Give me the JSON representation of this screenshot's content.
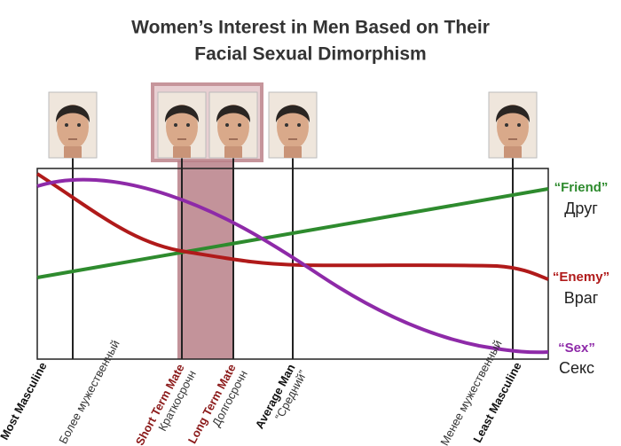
{
  "header": {
    "title": [
      "Women’s Interest in Men Based on Their",
      "Facial Sexual Dimorphism"
    ]
  },
  "legend": {
    "friend": [
      "“Friend”",
      "Друг"
    ],
    "enemy": [
      "“Enemy”",
      "Враг"
    ],
    "sex": [
      "“Sex”",
      "Секс"
    ]
  },
  "labels": [
    {
      "en": "Most Masculine",
      "ru": "Более мужественный"
    },
    {
      "en": "Short Term Mate",
      "ru": "Краткосрочн"
    },
    {
      "en": "Long Term Mate",
      "ru": "Долгосрочн"
    },
    {
      "en": "Average Man",
      "ru": "“Средний”"
    },
    {
      "en": "Least Masculine",
      "ru": "Менее мужественный"
    }
  ]
}
